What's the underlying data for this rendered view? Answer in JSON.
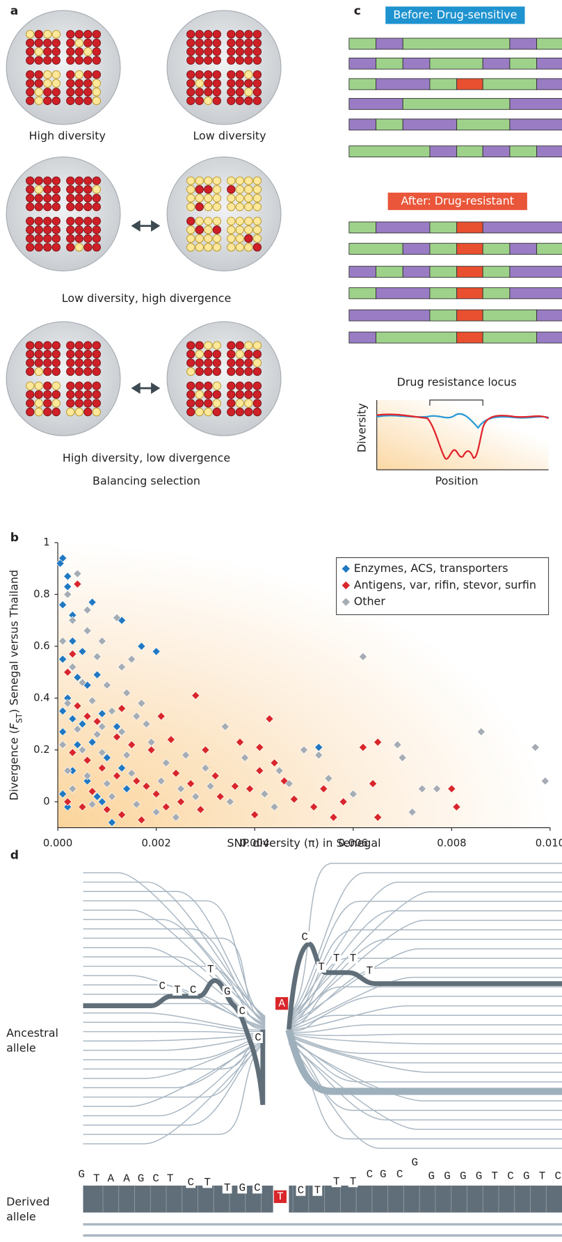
{
  "panels": {
    "a": {
      "label": "a",
      "captions": [
        "High diversity",
        "Low diversity",
        "Low diversity, high divergence",
        "High diversity, low divergence",
        "Balancing selection"
      ]
    },
    "b": {
      "label": "b"
    },
    "c": {
      "label": "c",
      "before": "Before: Drug-sensitive",
      "after": "After: Drug-resistant",
      "locus": "Drug resistance locus",
      "y_label": "Diversity",
      "x_label": "Position"
    },
    "d": {
      "label": "d",
      "ancestral_label": [
        "Ancestral",
        "allele"
      ],
      "derived_label": [
        "Derived",
        "allele"
      ],
      "ancestral_left": [
        "C",
        "T",
        "C",
        "T",
        "G",
        "C",
        "C"
      ],
      "ancestral_mutation": "A",
      "ancestral_right": [
        "C",
        "T",
        "T",
        "T",
        "T"
      ],
      "derived_left": [
        "G",
        "T",
        "A",
        "A",
        "G",
        "C",
        "T",
        "C",
        "T",
        "T",
        "G",
        "C"
      ],
      "derived_mutation": "T",
      "derived_right": [
        "C",
        "T",
        "T",
        "T",
        "C",
        "G",
        "C",
        "G",
        "G",
        "G",
        "G",
        "G",
        "T",
        "C",
        "G",
        "T",
        "C"
      ]
    }
  },
  "chart_data": {
    "type": "scatter",
    "xlabel": "SNP diversity (π) in Senegal",
    "ylabel": {
      "before": "Divergence (",
      "italic": "F",
      "sub": "ST",
      "after": ") Senegal versus Thailand"
    },
    "xlim": [
      0,
      0.01
    ],
    "ylim": [
      -0.1,
      1
    ],
    "xticks": [
      {
        "value": 0,
        "label": "0.000"
      },
      {
        "value": 0.002,
        "label": "0.002"
      },
      {
        "value": 0.004,
        "label": "0.004"
      },
      {
        "value": 0.006,
        "label": "0.006"
      },
      {
        "value": 0.008,
        "label": "0.008"
      },
      {
        "value": 0.01,
        "label": "0.010"
      }
    ],
    "yticks": [
      0,
      0.2,
      0.4,
      0.6,
      0.8,
      1
    ],
    "legend": "upper right",
    "series": [
      {
        "name": "Enzymes, ACS, transporters",
        "color": "#1f78c1",
        "x": [
          5e-05,
          0.0001,
          0.0002,
          0.0002,
          0.0001,
          0.0003,
          0.0007,
          0.0013,
          0.0017,
          0.002,
          0.0003,
          0.0005,
          0.0001,
          0.0004,
          0.0006,
          0.0008,
          0.0002,
          0.0001,
          0.0003,
          0.0005,
          0.0009,
          0.0012,
          0.0001,
          0.0004,
          0.0007,
          0.001,
          0.0013,
          0.0003,
          0.0006,
          0.0001,
          0.0002,
          0.0008,
          0.0011,
          0.0053,
          0.0014,
          0.0009
        ],
        "values": [
          0.92,
          0.94,
          0.87,
          0.83,
          0.76,
          0.72,
          0.77,
          0.7,
          0.6,
          0.58,
          0.62,
          0.58,
          0.55,
          0.48,
          0.45,
          0.49,
          0.4,
          0.35,
          0.32,
          0.3,
          0.34,
          0.29,
          0.27,
          0.22,
          0.23,
          0.17,
          0.13,
          0.12,
          0.08,
          0.03,
          -0.02,
          0.02,
          -0.08,
          0.21,
          0.05,
          0
        ]
      },
      {
        "name": "Antigens, var, rifin, stevor, surfin",
        "color": "#d9262b",
        "x": [
          0.0004,
          0.0003,
          0.0002,
          0.0004,
          0.0006,
          0.0008,
          0.0013,
          0.0028,
          0.0021,
          0.0043,
          0.0012,
          0.0015,
          0.0019,
          0.0023,
          0.003,
          0.0037,
          0.0041,
          0.0003,
          0.0006,
          0.0009,
          0.0012,
          0.0016,
          0.0018,
          0.002,
          0.0024,
          0.0027,
          0.0032,
          0.0036,
          0.0039,
          0.0041,
          0.0044,
          0.0048,
          0.0052,
          0.0056,
          0.0058,
          0.0062,
          0.0064,
          0.0065,
          0.0065,
          0.008,
          0.0081,
          0.0002,
          0.0005,
          0.0007,
          0.001,
          0.0013,
          0.0017,
          0.0022,
          0.0025,
          0.0029,
          0.0033,
          0.004,
          0.0046,
          0.0054
        ],
        "values": [
          0.84,
          0.57,
          0.5,
          0.37,
          0.33,
          0.31,
          0.36,
          0.41,
          0.33,
          0.32,
          0.25,
          0.22,
          0.2,
          0.24,
          0.2,
          0.23,
          0.21,
          0.19,
          0.16,
          0.13,
          0.1,
          0.08,
          0.06,
          0.03,
          0.11,
          0.07,
          0.1,
          0.06,
          0.05,
          0.12,
          0.15,
          0.01,
          -0.02,
          -0.06,
          0,
          0.21,
          0.07,
          0.23,
          -0.06,
          0.05,
          -0.02,
          0,
          -0.02,
          0.04,
          -0.03,
          -0.05,
          -0.07,
          -0.02,
          0,
          -0.03,
          0.02,
          -0.05,
          0.08,
          0.05
        ]
      },
      {
        "name": "Other",
        "color": "#a5acb4",
        "x": [
          0.0004,
          0.0002,
          0.0003,
          0.0006,
          0.0009,
          0.0012,
          0.0015,
          0.0008,
          0.0003,
          0.0005,
          0.001,
          0.0014,
          0.0002,
          0.0007,
          0.0011,
          0.0016,
          0.0004,
          0.0008,
          0.0013,
          0.0018,
          0.0001,
          0.0005,
          0.0009,
          0.0014,
          0.0019,
          0.0022,
          0.0026,
          0.003,
          0.0034,
          0.0038,
          0.0045,
          0.005,
          0.0053,
          0.0062,
          0.0069,
          0.007,
          0.0074,
          0.0077,
          0.0086,
          0.0097,
          0.0099,
          0.0072,
          0.0002,
          0.0006,
          0.001,
          0.0015,
          0.0021,
          0.0025,
          0.0028,
          0.0031,
          0.0035,
          0.0042,
          0.0044,
          0.0047,
          0.0055,
          0.006,
          0.0003,
          0.0007,
          0.0011,
          0.0016,
          0.002,
          0.0024,
          0.0001,
          0.0006,
          0.0013,
          0.0017,
          0.0009
        ],
        "values": [
          0.88,
          0.8,
          0.7,
          0.66,
          0.62,
          0.71,
          0.55,
          0.56,
          0.52,
          0.46,
          0.45,
          0.42,
          0.38,
          0.39,
          0.35,
          0.33,
          0.28,
          0.26,
          0.27,
          0.3,
          0.22,
          0.2,
          0.19,
          0.18,
          0.23,
          0.15,
          0.18,
          0.13,
          0.29,
          0.17,
          0.12,
          0.2,
          0.18,
          0.56,
          0.22,
          0.17,
          0.05,
          0.05,
          0.27,
          0.21,
          0.08,
          -0.04,
          0.12,
          0.1,
          0.07,
          0.11,
          0.08,
          0.05,
          0.02,
          0.06,
          0,
          0.03,
          -0.02,
          0.07,
          0.09,
          0.03,
          0.05,
          -0.01,
          0.02,
          -0.01,
          -0.04,
          -0.06,
          0.62,
          0.74,
          0.52,
          0.38,
          0.29
        ]
      }
    ]
  }
}
